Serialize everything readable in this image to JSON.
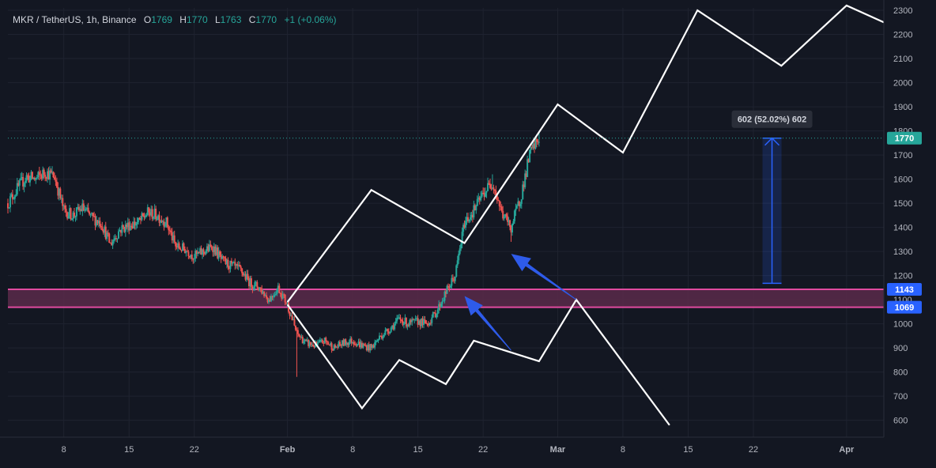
{
  "header": {
    "symbol": "MKR / TetherUS, 1h, Binance",
    "o_label": "O",
    "o_value": "1769",
    "h_label": "H",
    "h_value": "1770",
    "l_label": "L",
    "l_value": "1763",
    "c_label": "C",
    "c_value": "1770",
    "change": "+1 (+0.06%)"
  },
  "measure_label": "602 (52.02%) 602",
  "colors": {
    "background": "#131722",
    "grid": "#1f2330",
    "up": "#26a69a",
    "down": "#ef5350",
    "zone_fill": "#5b2a4a",
    "zone_line": "#e04aa0",
    "measure": "#2962ff",
    "arrow": "#2e5bea",
    "projection": "#ffffff",
    "price_label": "#26a69a"
  },
  "chart_data": {
    "type": "candlestick",
    "x_start": "2024-01-02",
    "x_end": "2024-04-05",
    "ylim": [
      530,
      2310
    ],
    "y_ticks": [
      600,
      700,
      800,
      900,
      1000,
      1100,
      1200,
      1300,
      1400,
      1500,
      1600,
      1700,
      1800,
      1900,
      2000,
      2100,
      2200,
      2300
    ],
    "x_ticks": [
      {
        "date": "2024-01-08",
        "label": "8"
      },
      {
        "date": "2024-01-15",
        "label": "15"
      },
      {
        "date": "2024-01-22",
        "label": "22"
      },
      {
        "date": "2024-02-01",
        "label": "Feb"
      },
      {
        "date": "2024-02-08",
        "label": "8"
      },
      {
        "date": "2024-02-15",
        "label": "15"
      },
      {
        "date": "2024-02-22",
        "label": "22"
      },
      {
        "date": "2024-03-01",
        "label": "Mar"
      },
      {
        "date": "2024-03-08",
        "label": "8"
      },
      {
        "date": "2024-03-15",
        "label": "15"
      },
      {
        "date": "2024-03-22",
        "label": "22"
      },
      {
        "date": "2024-04-01",
        "label": "Apr"
      }
    ],
    "price_path": [
      [
        "2024-01-02",
        1500
      ],
      [
        "2024-01-03",
        1560
      ],
      [
        "2024-01-04",
        1610
      ],
      [
        "2024-01-05",
        1600
      ],
      [
        "2024-01-06",
        1630
      ],
      [
        "2024-01-07",
        1610
      ],
      [
        "2024-01-08",
        1470
      ],
      [
        "2024-01-09",
        1450
      ],
      [
        "2024-01-10",
        1480
      ],
      [
        "2024-01-11",
        1440
      ],
      [
        "2024-01-12",
        1420
      ],
      [
        "2024-01-13",
        1330
      ],
      [
        "2024-01-14",
        1390
      ],
      [
        "2024-01-15",
        1410
      ],
      [
        "2024-01-16",
        1420
      ],
      [
        "2024-01-17",
        1460
      ],
      [
        "2024-01-18",
        1450
      ],
      [
        "2024-01-19",
        1420
      ],
      [
        "2024-01-20",
        1320
      ],
      [
        "2024-01-21",
        1310
      ],
      [
        "2024-01-22",
        1280
      ],
      [
        "2024-01-23",
        1300
      ],
      [
        "2024-01-24",
        1320
      ],
      [
        "2024-01-25",
        1260
      ],
      [
        "2024-01-26",
        1240
      ],
      [
        "2024-01-27",
        1220
      ],
      [
        "2024-01-28",
        1170
      ],
      [
        "2024-01-29",
        1150
      ],
      [
        "2024-01-30",
        1100
      ],
      [
        "2024-01-31",
        1150
      ],
      [
        "2024-02-01",
        1080
      ],
      [
        "2024-02-02",
        960
      ],
      [
        "2024-02-03",
        920
      ],
      [
        "2024-02-04",
        910
      ],
      [
        "2024-02-05",
        930
      ],
      [
        "2024-02-06",
        900
      ],
      [
        "2024-02-07",
        920
      ],
      [
        "2024-02-08",
        930
      ],
      [
        "2024-02-09",
        910
      ],
      [
        "2024-02-10",
        900
      ],
      [
        "2024-02-11",
        950
      ],
      [
        "2024-02-12",
        980
      ],
      [
        "2024-02-13",
        1020
      ],
      [
        "2024-02-14",
        1000
      ],
      [
        "2024-02-15",
        1010
      ],
      [
        "2024-02-16",
        1000
      ],
      [
        "2024-02-17",
        1050
      ],
      [
        "2024-02-18",
        1130
      ],
      [
        "2024-02-19",
        1200
      ],
      [
        "2024-02-20",
        1420
      ],
      [
        "2024-02-21",
        1470
      ],
      [
        "2024-02-22",
        1540
      ],
      [
        "2024-02-23",
        1590
      ],
      [
        "2024-02-24",
        1460
      ],
      [
        "2024-02-25",
        1400
      ],
      [
        "2024-02-26",
        1520
      ],
      [
        "2024-02-27",
        1700
      ],
      [
        "2024-02-28",
        1770
      ]
    ],
    "wicks": [
      [
        "2024-02-02",
        780
      ],
      [
        "2024-02-25",
        1340
      ],
      [
        "2024-02-23",
        1620
      ],
      [
        "2024-02-28",
        1790
      ]
    ],
    "last_price": 1770,
    "zone": {
      "low": 1069,
      "high": 1143
    },
    "zone_lines": [
      1069,
      1143
    ],
    "measure": {
      "date": "2024-03-24",
      "from": 1168,
      "to": 1770,
      "change": 602,
      "percent": 52.02
    },
    "projection_up": [
      [
        "2024-02-01",
        1090
      ],
      [
        "2024-02-10",
        1555
      ],
      [
        "2024-02-20",
        1335
      ],
      [
        "2024-03-01",
        1910
      ],
      [
        "2024-03-08",
        1710
      ],
      [
        "2024-03-16",
        2300
      ],
      [
        "2024-03-25",
        2070
      ],
      [
        "2024-04-01",
        2320
      ],
      [
        "2024-04-05",
        2250
      ]
    ],
    "projection_down": [
      [
        "2024-02-01",
        1080
      ],
      [
        "2024-02-09",
        650
      ],
      [
        "2024-02-13",
        850
      ],
      [
        "2024-02-18",
        750
      ],
      [
        "2024-02-21",
        930
      ],
      [
        "2024-02-28",
        845
      ],
      [
        "2024-03-03",
        1100
      ],
      [
        "2024-03-13",
        580
      ]
    ],
    "arrows": [
      {
        "from": [
          "2024-02-25",
          890
        ],
        "to": [
          "2024-02-20",
          1115
        ]
      },
      {
        "from": [
          "2024-03-03",
          1100
        ],
        "to": [
          "2024-02-25",
          1290
        ]
      }
    ]
  }
}
